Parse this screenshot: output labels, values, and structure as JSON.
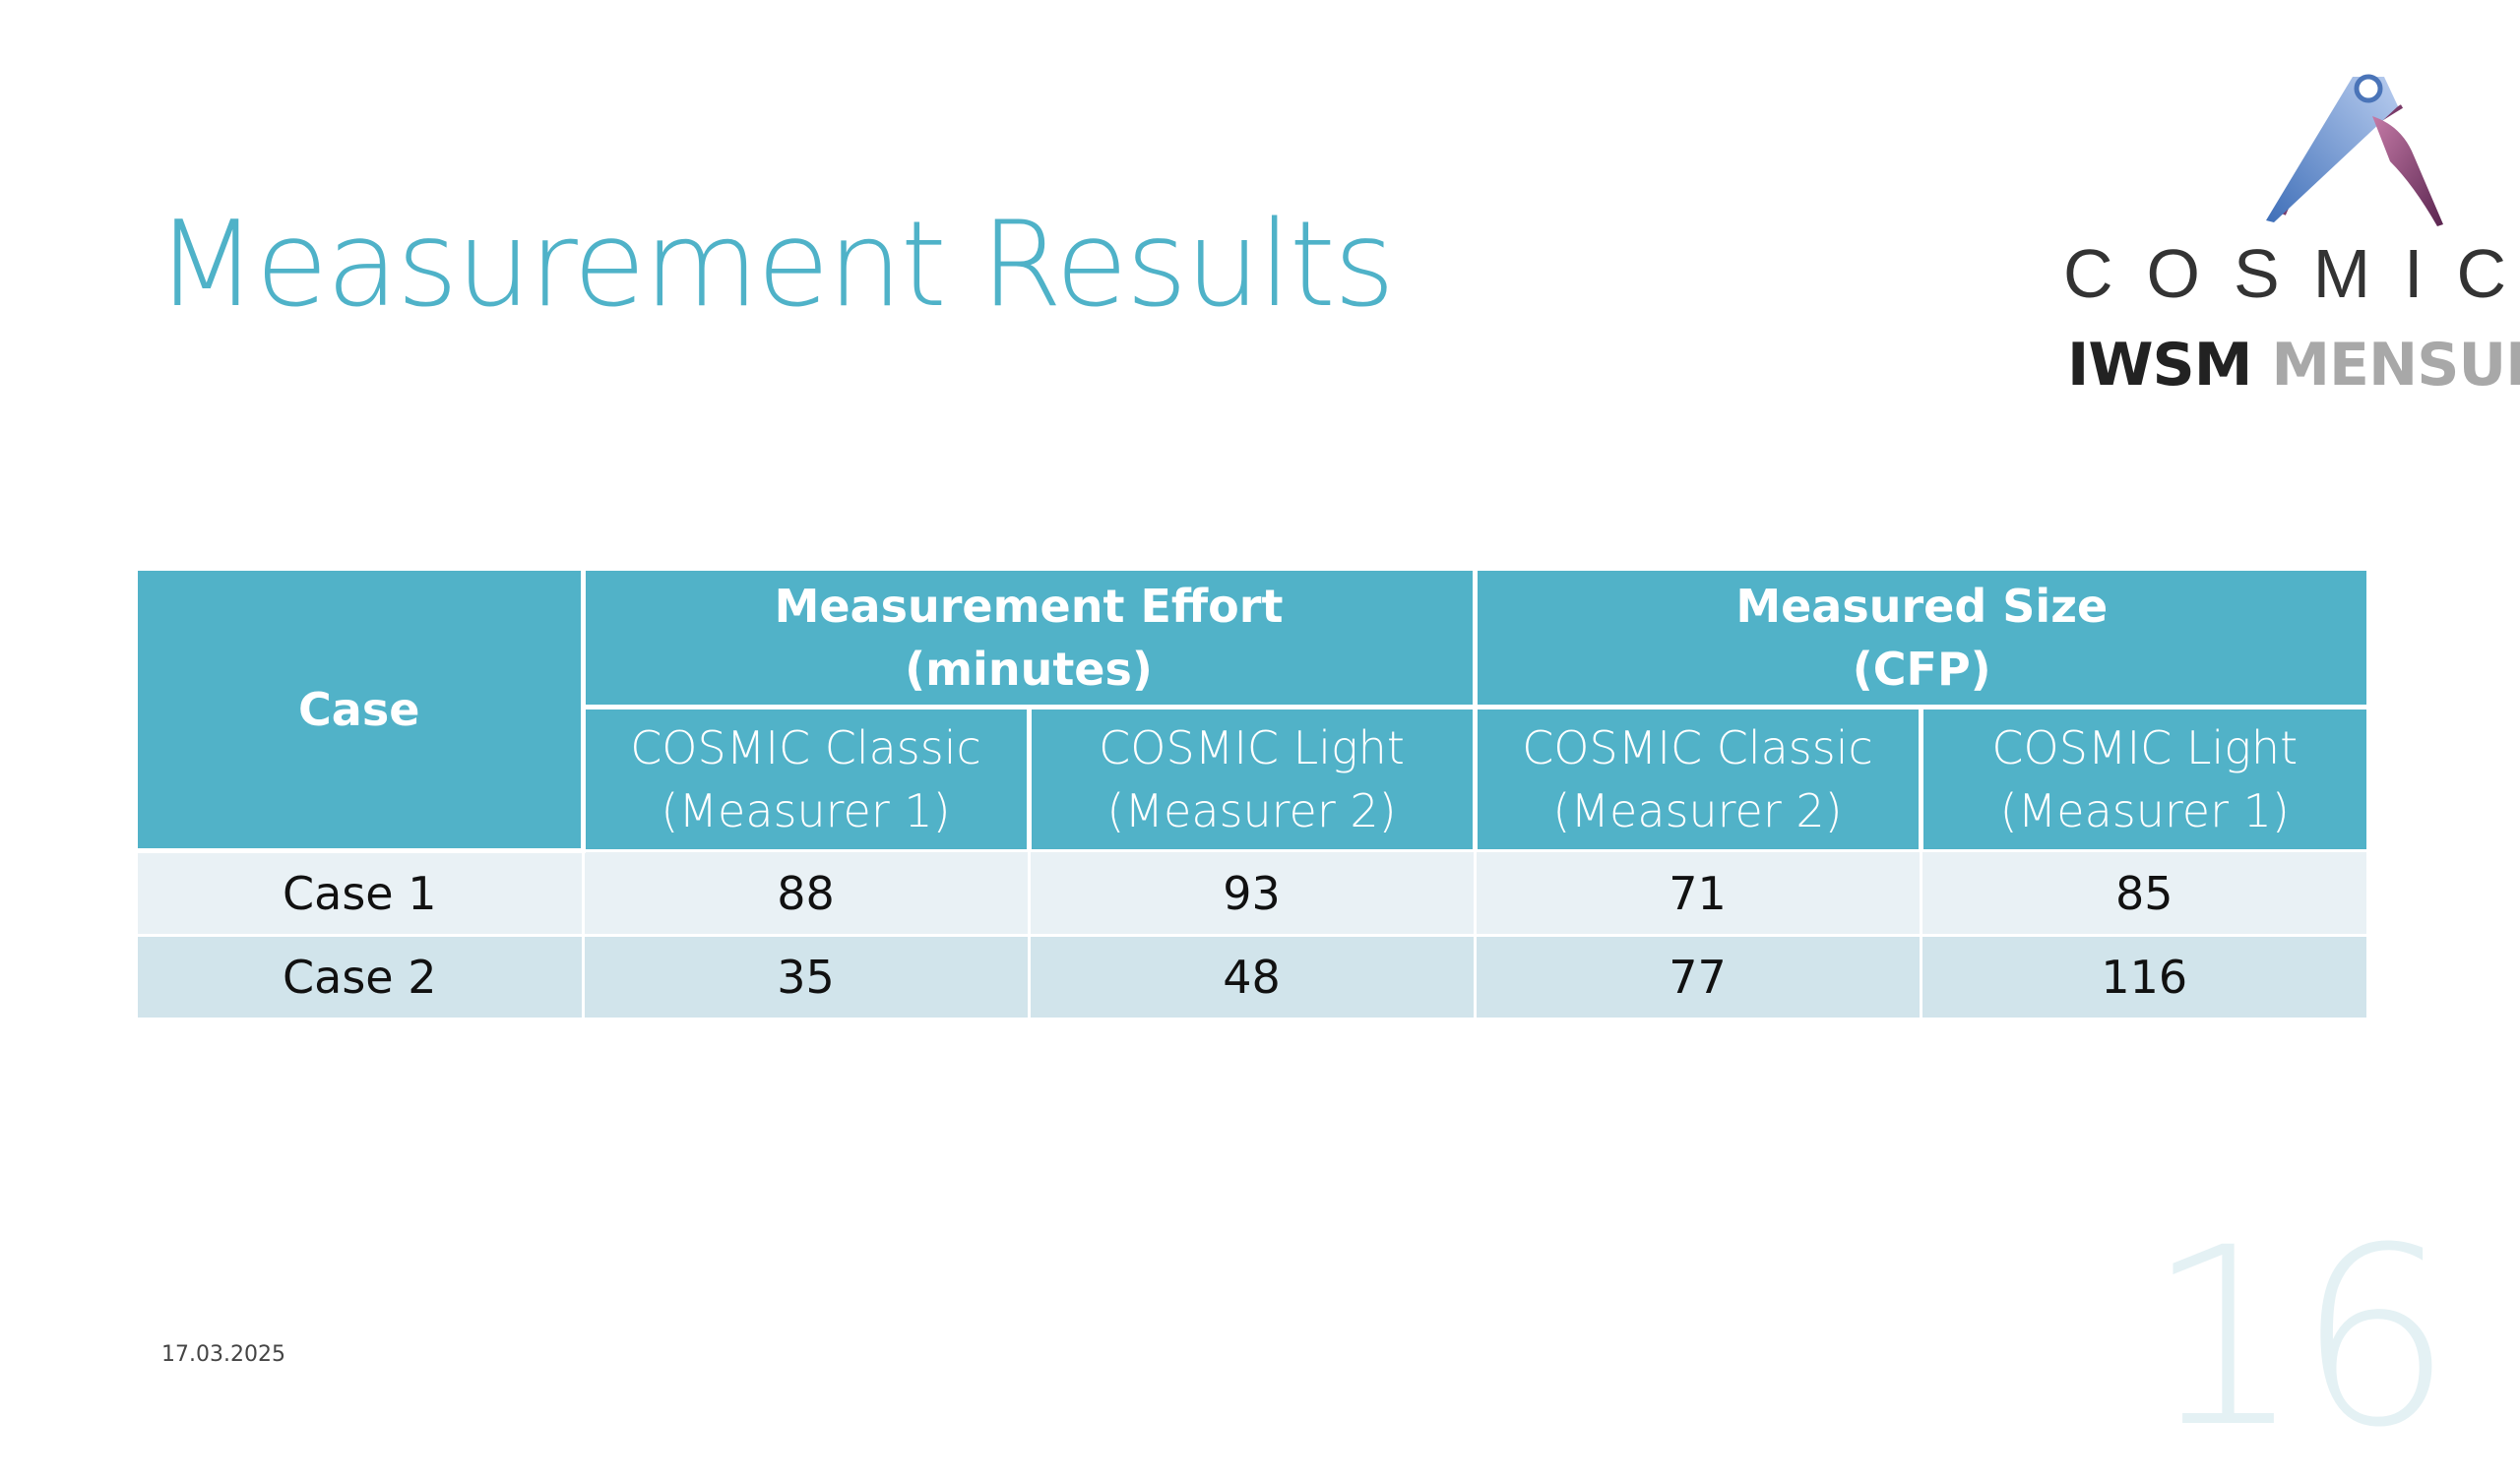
{
  "slide": {
    "title": "Measurement Results",
    "date": "17.03.2025",
    "page_number": "16"
  },
  "logo": {
    "wordmark": "COSMIC",
    "tag_bold": "IWSM",
    "tag_light": "MENSURA",
    "colors": {
      "blue": "#6f9fd6",
      "purple": "#7a3a68",
      "text": "#333333"
    }
  },
  "table": {
    "case_header": "Case",
    "group_headers": [
      {
        "line1": "Measurement Effort",
        "line2": "(minutes)"
      },
      {
        "line1": "Measured Size",
        "line2": "(CFP)"
      }
    ],
    "sub_headers": [
      {
        "line1": "COSMIC Classic",
        "line2": "(Measurer 1)"
      },
      {
        "line1": "COSMIC Light",
        "line2": "(Measurer 2)"
      },
      {
        "line1": "COSMIC Classic",
        "line2": "(Measurer 2)"
      },
      {
        "line1": "COSMIC Light",
        "line2": "(Measurer 1)"
      }
    ],
    "rows": [
      {
        "case": "Case 1",
        "values": [
          "88",
          "93",
          "71",
          "85"
        ]
      },
      {
        "case": "Case 2",
        "values": [
          "35",
          "48",
          "77",
          "116"
        ]
      }
    ],
    "colors": {
      "header": "#51b2c8",
      "row_light": "#e9f1f5",
      "row_dark": "#d1e4eb"
    }
  }
}
